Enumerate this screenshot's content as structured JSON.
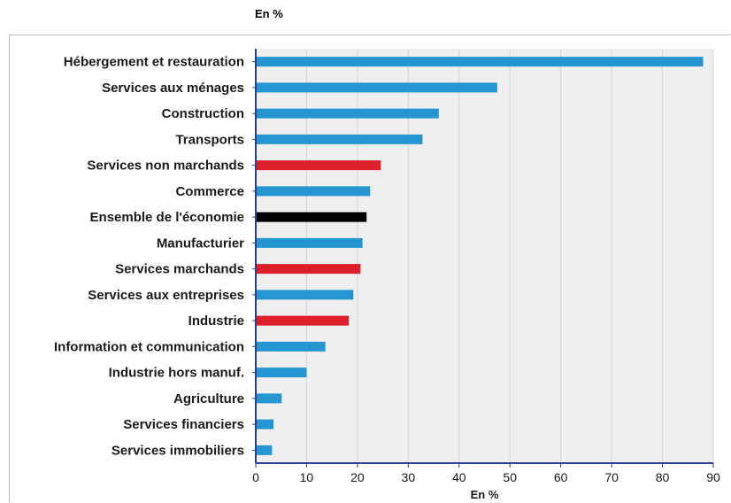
{
  "unit_label": "En %",
  "chart_data": {
    "type": "bar",
    "orientation": "horizontal",
    "categories": [
      "Hébergement et restauration",
      "Services aux ménages",
      "Construction",
      "Transports",
      "Services non marchands",
      "Commerce",
      "Ensemble de l'économie",
      "Manufacturier",
      "Services marchands",
      "Services aux entreprises",
      "Industrie",
      "Information et communication",
      "Industrie hors manuf.",
      "Agriculture",
      "Services financiers",
      "Services immobiliers"
    ],
    "values": [
      88,
      47.5,
      36,
      32.8,
      24.6,
      22.5,
      21.8,
      21,
      20.6,
      19.2,
      18.3,
      13.7,
      10,
      5.1,
      3.5,
      3.2
    ],
    "bar_colors": [
      "#2596d1",
      "#2596d1",
      "#2596d1",
      "#2596d1",
      "#dd1f2b",
      "#2596d1",
      "#000000",
      "#2596d1",
      "#dd1f2b",
      "#2596d1",
      "#dd1f2b",
      "#2596d1",
      "#2596d1",
      "#2596d1",
      "#2596d1",
      "#2596d1"
    ],
    "xlim": [
      0,
      90
    ],
    "xticks": [
      0,
      10,
      20,
      30,
      40,
      50,
      60,
      70,
      80,
      90
    ],
    "xlabel": "En %",
    "ylabel": "",
    "grid": "vertical",
    "colors": {
      "background": "#efefef",
      "grid": "#d6d6d6",
      "axis": "#2a3f8f"
    }
  }
}
